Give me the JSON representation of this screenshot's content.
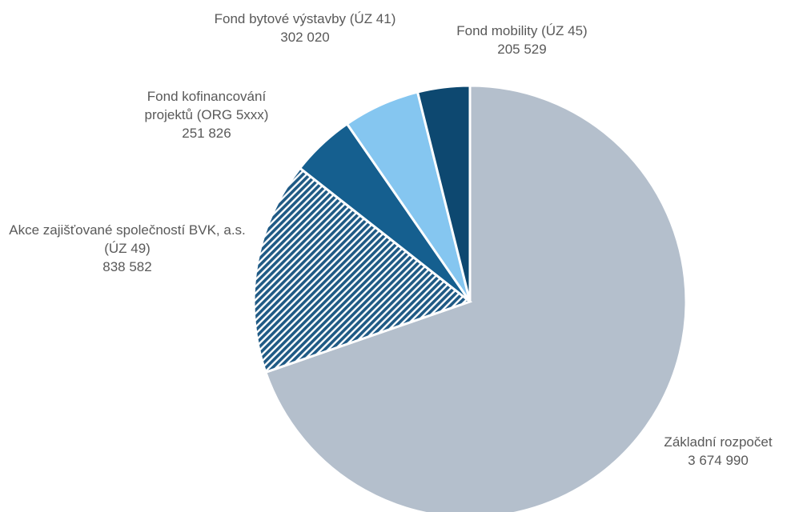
{
  "chart_data": {
    "type": "pie",
    "categories": [
      "Základní rozpočet",
      "Akce zajišťované společností BVK, a.s. (ÚZ 49)",
      "Fond kofinancování projektů (ORG 5xxx)",
      "Fond bytové výstavby (ÚZ 41)",
      "Fond mobility (ÚZ 45)"
    ],
    "values": [
      3674990,
      838582,
      251826,
      302020,
      205529
    ],
    "value_labels": [
      "3 674 990",
      "838 582",
      "251 826",
      "302 020",
      "205 529"
    ],
    "colors": [
      "#b4bfcc",
      "#1f5a85",
      "#155f8f",
      "#85c6f0",
      "#0d4870"
    ],
    "patterns": [
      "solid",
      "hatch",
      "solid",
      "solid",
      "solid"
    ]
  }
}
